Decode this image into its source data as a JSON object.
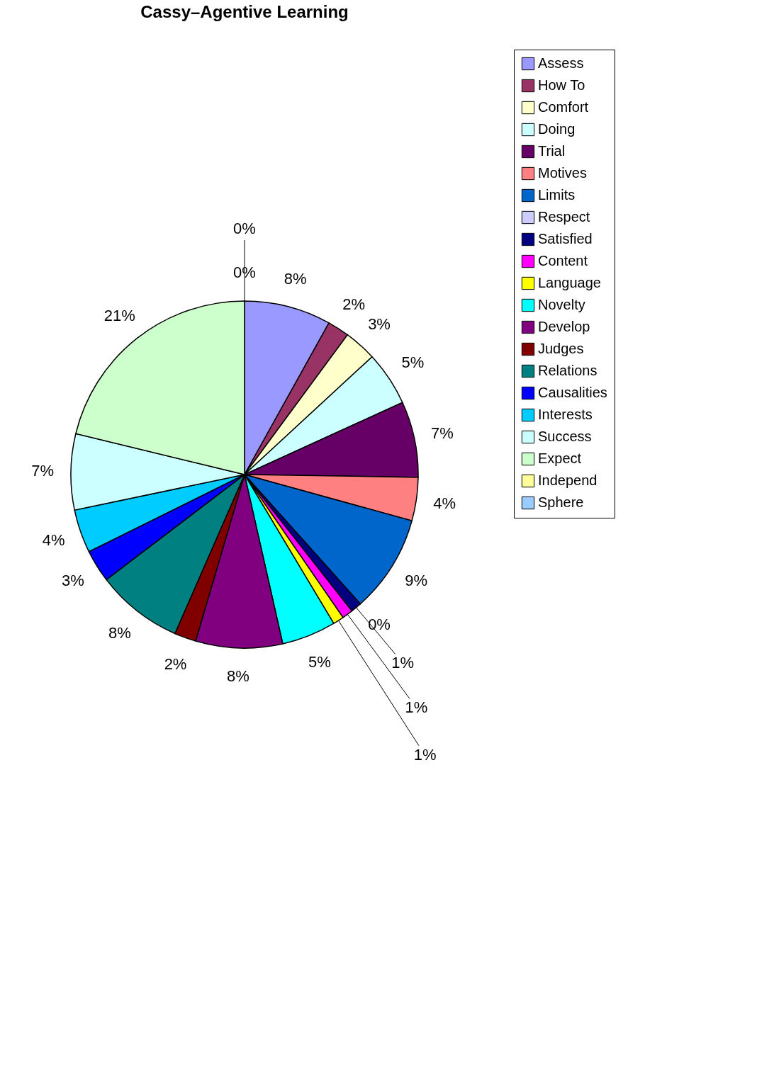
{
  "chart_data": {
    "type": "pie",
    "title": "Cassy–Agentive Learning",
    "categories": [
      "Assess",
      "How To",
      "Comfort",
      "Doing",
      "Trial",
      "Motives",
      "Limits",
      "Respect",
      "Satisfied",
      "Content",
      "Language",
      "Novelty",
      "Develop",
      "Judges",
      "Relations",
      "Causalities",
      "Interests",
      "Success",
      "Expect",
      "Independ",
      "Sphere"
    ],
    "values": [
      8,
      2,
      3,
      5,
      7,
      4,
      9,
      0,
      1,
      1,
      1,
      5,
      8,
      2,
      8,
      3,
      4,
      7,
      21,
      0,
      0
    ],
    "colors": [
      "#9999ff",
      "#993366",
      "#ffffcc",
      "#ccffff",
      "#660066",
      "#ff8080",
      "#0066cc",
      "#ccccff",
      "#000080",
      "#ff00ff",
      "#ffff00",
      "#00ffff",
      "#800080",
      "#800000",
      "#008080",
      "#0000ff",
      "#00ccff",
      "#ccffff",
      "#ccffcc",
      "#ffff99",
      "#99ccff"
    ],
    "value_labels": [
      "8%",
      "2%",
      "3%",
      "5%",
      "7%",
      "4%",
      "9%",
      "0%",
      "1%",
      "1%",
      "1%",
      "5%",
      "8%",
      "2%",
      "8%",
      "3%",
      "4%",
      "7%",
      "21%",
      "0%",
      "0%"
    ],
    "legend": "right"
  }
}
